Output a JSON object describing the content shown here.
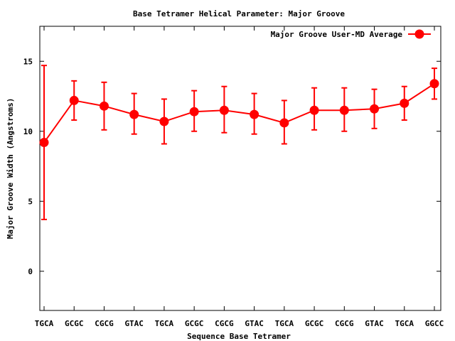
{
  "chart_data": {
    "type": "line",
    "title": "Base Tetramer Helical Parameter: Major Groove",
    "xlabel": "Sequence Base Tetramer",
    "ylabel": "Major Groove Width (Angstroms)",
    "categories": [
      "TGCA",
      "GCGC",
      "CGCG",
      "GTAC",
      "TGCA",
      "GCGC",
      "CGCG",
      "GTAC",
      "TGCA",
      "GCGC",
      "CGCG",
      "GTAC",
      "TGCA",
      "GGCC"
    ],
    "ylim": [
      -2.8,
      17.5
    ],
    "yticks": [
      0,
      5,
      10,
      15
    ],
    "grid": false,
    "legend_position": "top-right",
    "series": [
      {
        "name": "Major Groove User-MD Average",
        "color": "#ff0000",
        "values": [
          9.2,
          12.2,
          11.8,
          11.2,
          10.7,
          11.4,
          11.5,
          11.2,
          10.6,
          11.5,
          11.5,
          11.6,
          12.0,
          13.4
        ],
        "error_low": [
          3.7,
          10.8,
          10.1,
          9.8,
          9.1,
          10.0,
          9.9,
          9.8,
          9.1,
          10.1,
          10.0,
          10.2,
          10.8,
          12.3
        ],
        "error_high": [
          14.7,
          13.6,
          13.5,
          12.7,
          12.3,
          12.9,
          13.2,
          12.7,
          12.2,
          13.1,
          13.1,
          13.0,
          13.2,
          14.5
        ]
      }
    ]
  }
}
